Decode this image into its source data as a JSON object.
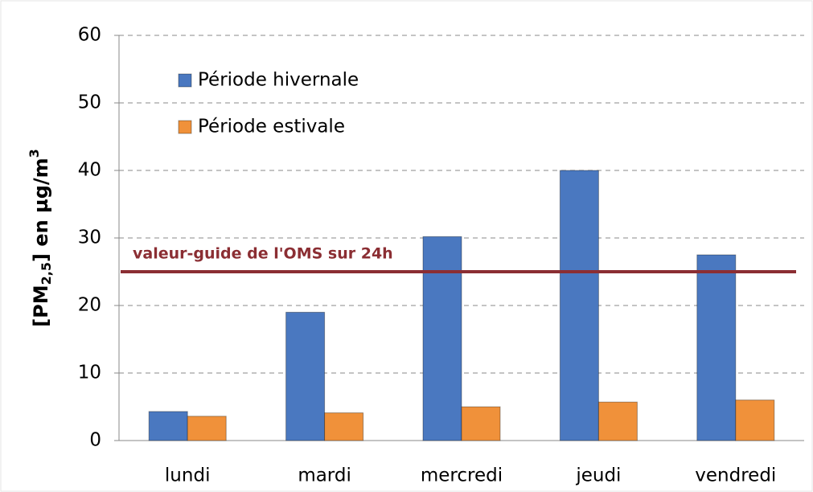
{
  "chart_data": {
    "type": "bar",
    "categories": [
      "lundi",
      "mardi",
      "mercredi",
      "jeudi",
      "vendredi"
    ],
    "series": [
      {
        "name": "Période hivernale",
        "color": "#4a78c0",
        "values": [
          4.3,
          19,
          30.2,
          40,
          27.5
        ]
      },
      {
        "name": "Période estivale",
        "color": "#f0913a",
        "values": [
          3.6,
          4.1,
          5,
          5.7,
          6
        ]
      }
    ],
    "y_label": {
      "main": "[PM",
      "sub": "2,5",
      "mid": "] en µg/m",
      "sup": "3"
    },
    "reference_line": {
      "value": 25,
      "label": "valeur-guide de l'OMS sur 24h",
      "color": "#8b2e33"
    },
    "ylim": [
      0,
      60
    ],
    "yticks": [
      0,
      10,
      20,
      30,
      40,
      50,
      60
    ],
    "grid": true,
    "legend": "upper left"
  }
}
